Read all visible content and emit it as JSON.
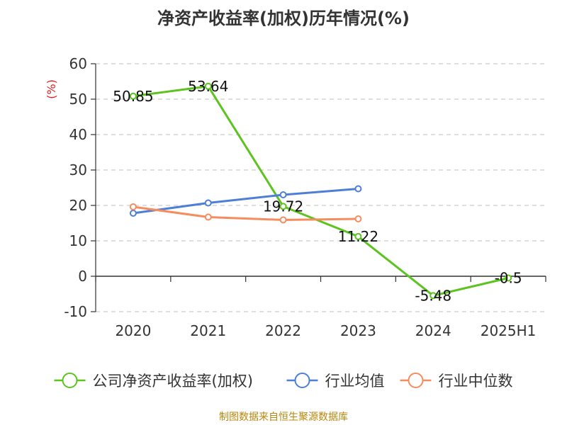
{
  "chart_data": {
    "type": "line",
    "title": "净资产收益率(加权)历年情况(%)",
    "ylabel": "(%)",
    "categories": [
      "2020",
      "2021",
      "2022",
      "2023",
      "2024",
      "2025H1"
    ],
    "ylim": [
      -10,
      60
    ],
    "yticks": [
      -10,
      0,
      10,
      20,
      30,
      40,
      50,
      60
    ],
    "grid": true,
    "legend_position": "bottom",
    "series": [
      {
        "name": "公司净资产收益率(加权)",
        "color": "#5cc31f",
        "values": [
          50.85,
          53.64,
          19.72,
          11.22,
          -5.48,
          -0.5
        ],
        "labels": [
          "50.85",
          "53.64",
          "19.72",
          "11.22",
          "-5.48",
          "-0.5"
        ]
      },
      {
        "name": "行业均值",
        "color": "#4e7fd8",
        "values": [
          17.8,
          20.7,
          23.0,
          24.7,
          null,
          null
        ]
      },
      {
        "name": "行业中位数",
        "color": "#f58d5e",
        "values": [
          19.6,
          16.7,
          15.9,
          16.2,
          null,
          null
        ]
      }
    ]
  },
  "source": "制图数据来自恒生聚源数据库"
}
